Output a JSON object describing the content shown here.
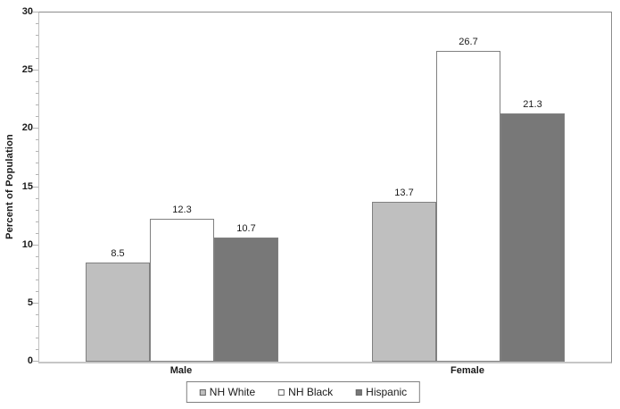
{
  "chart_data": {
    "type": "bar",
    "title": "",
    "xlabel": "",
    "ylabel": "Percent of Population",
    "categories": [
      "Male",
      "Female"
    ],
    "series": [
      {
        "name": "NH White",
        "values": [
          8.5,
          13.7
        ],
        "fill": "#bfbfbf"
      },
      {
        "name": "NH Black",
        "values": [
          12.3,
          26.7
        ],
        "fill": "#ffffff"
      },
      {
        "name": "Hispanic",
        "values": [
          10.7,
          21.3
        ],
        "fill": "#787878"
      }
    ],
    "ylim": [
      0,
      30
    ],
    "y_major_step": 5,
    "y_minor_step": 1,
    "y_tick_labels": [
      "0",
      "5",
      "10",
      "15",
      "20",
      "25",
      "30"
    ],
    "grid": "off",
    "legend_position": "bottom",
    "value_labels_shown": true,
    "colors": {
      "bar_border": "#808080",
      "axis_line": "#c0c0c0",
      "frame_line": "#8c8c8c",
      "tick": "#b3b3b3",
      "text": "#1a1a1a"
    }
  }
}
